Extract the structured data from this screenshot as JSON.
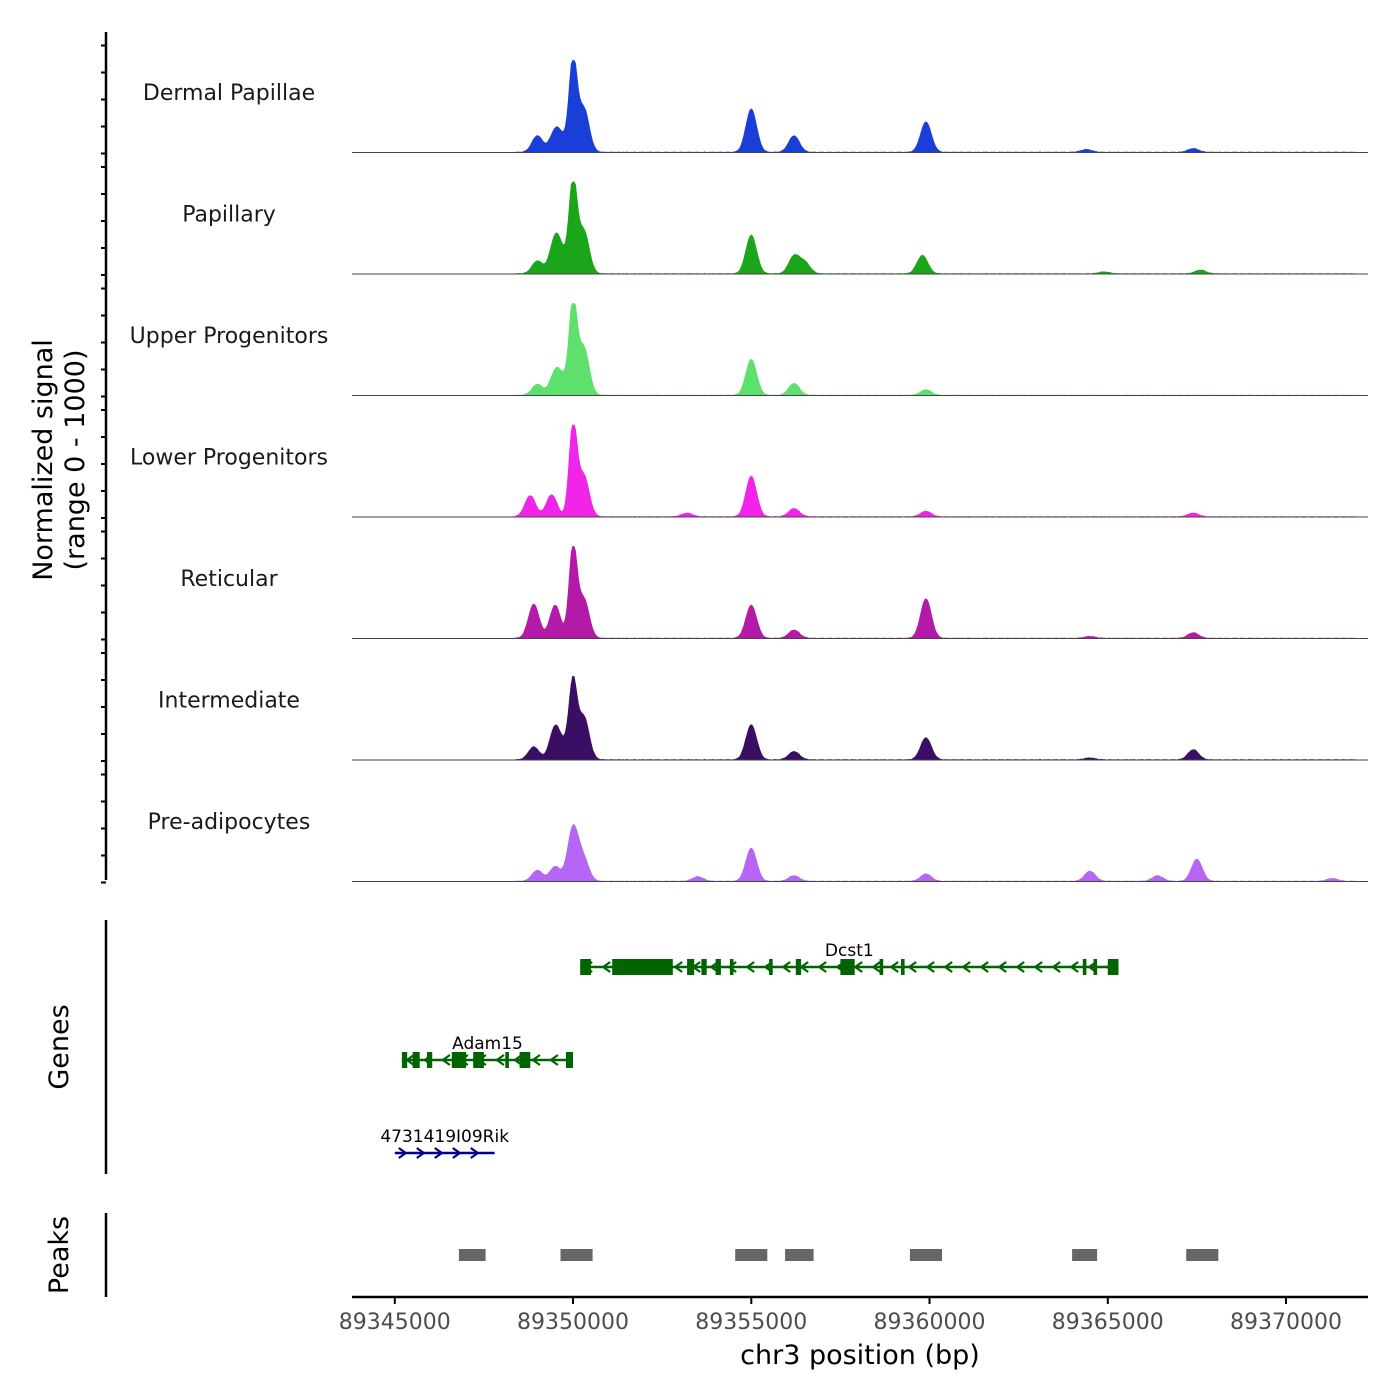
{
  "chart_data": {
    "type": "area",
    "title": "",
    "ylabel_line1": "Normalized signal",
    "ylabel_line2": "(range 0 - 1000)",
    "xlabel": "chr3 position (bp)",
    "xlim": [
      89343800,
      89372300
    ],
    "xticks": [
      89345000,
      89350000,
      89355000,
      89360000,
      89365000,
      89370000
    ],
    "xtick_labels": [
      "89345000",
      "89350000",
      "89355000",
      "89360000",
      "89365000",
      "89370000"
    ],
    "ylim": [
      0,
      1000
    ],
    "tracks": [
      {
        "name": "Dermal Papillae",
        "color": "#1a3fd8",
        "peaks": [
          [
            89349000,
            180
          ],
          [
            89349500,
            220
          ],
          [
            89349700,
            110
          ],
          [
            89350000,
            1000
          ],
          [
            89350300,
            480
          ],
          [
            89355000,
            470
          ],
          [
            89356200,
            180
          ],
          [
            89359900,
            330
          ],
          [
            89364400,
            30
          ],
          [
            89367400,
            40
          ]
        ]
      },
      {
        "name": "Papillary",
        "color": "#1aa51a",
        "peaks": [
          [
            89349000,
            140
          ],
          [
            89349500,
            370
          ],
          [
            89349700,
            150
          ],
          [
            89350000,
            1000
          ],
          [
            89350300,
            470
          ],
          [
            89355000,
            420
          ],
          [
            89356200,
            190
          ],
          [
            89356500,
            120
          ],
          [
            89359800,
            200
          ],
          [
            89364900,
            20
          ],
          [
            89367600,
            40
          ]
        ]
      },
      {
        "name": "Upper Progenitors",
        "color": "#5ee06e",
        "peaks": [
          [
            89349000,
            120
          ],
          [
            89349500,
            230
          ],
          [
            89349700,
            140
          ],
          [
            89350000,
            1000
          ],
          [
            89350300,
            520
          ],
          [
            89355000,
            390
          ],
          [
            89356200,
            130
          ],
          [
            89359900,
            60
          ]
        ]
      },
      {
        "name": "Lower Progenitors",
        "color": "#f025e8",
        "peaks": [
          [
            89348800,
            230
          ],
          [
            89349400,
            240
          ],
          [
            89350000,
            1000
          ],
          [
            89350300,
            450
          ],
          [
            89353200,
            40
          ],
          [
            89355000,
            440
          ],
          [
            89356200,
            90
          ],
          [
            89359900,
            60
          ],
          [
            89367400,
            40
          ]
        ]
      },
      {
        "name": "Reticular",
        "color": "#b41aa8",
        "peaks": [
          [
            89348900,
            370
          ],
          [
            89349500,
            360
          ],
          [
            89350000,
            1000
          ],
          [
            89350300,
            430
          ],
          [
            89355000,
            360
          ],
          [
            89356200,
            90
          ],
          [
            89359900,
            430
          ],
          [
            89364500,
            20
          ],
          [
            89367400,
            60
          ]
        ]
      },
      {
        "name": "Intermediate",
        "color": "#3a0e62",
        "peaks": [
          [
            89348900,
            140
          ],
          [
            89349500,
            360
          ],
          [
            89349800,
            120
          ],
          [
            89350000,
            800
          ],
          [
            89350300,
            470
          ],
          [
            89355000,
            380
          ],
          [
            89356200,
            90
          ],
          [
            89359900,
            240
          ],
          [
            89364500,
            20
          ],
          [
            89367400,
            110
          ]
        ]
      },
      {
        "name": "Pre-adipocytes",
        "color": "#b566f5",
        "peaks": [
          [
            89349000,
            120
          ],
          [
            89349500,
            160
          ],
          [
            89350000,
            580
          ],
          [
            89350300,
            230
          ],
          [
            89353500,
            50
          ],
          [
            89355000,
            360
          ],
          [
            89356200,
            60
          ],
          [
            89359900,
            80
          ],
          [
            89364500,
            110
          ],
          [
            89366400,
            60
          ],
          [
            89367500,
            240
          ],
          [
            89371300,
            30
          ]
        ]
      }
    ],
    "genes_label": "Genes",
    "genes": [
      {
        "name": "Dcst1",
        "start": 89350200,
        "end": 89365300,
        "strand": "-",
        "color": "#006400",
        "row": 0,
        "exons": [
          [
            89350200,
            89350500
          ],
          [
            89351100,
            89352800
          ],
          [
            89353200,
            89353400
          ],
          [
            89353600,
            89353750
          ],
          [
            89354000,
            89354150
          ],
          [
            89354400,
            89354500
          ],
          [
            89355500,
            89355600
          ],
          [
            89356250,
            89356400
          ],
          [
            89357500,
            89357900
          ],
          [
            89358600,
            89358700
          ],
          [
            89359200,
            89359300
          ],
          [
            89364300,
            89364400
          ],
          [
            89364600,
            89364700
          ],
          [
            89365000,
            89365300
          ]
        ]
      },
      {
        "name": "Adam15",
        "start": 89345200,
        "end": 89350000,
        "strand": "-",
        "color": "#006400",
        "row": 1,
        "exons": [
          [
            89345200,
            89345350
          ],
          [
            89345500,
            89345700
          ],
          [
            89345900,
            89346050
          ],
          [
            89346600,
            89347000
          ],
          [
            89347200,
            89347500
          ],
          [
            89348100,
            89348200
          ],
          [
            89348500,
            89348800
          ],
          [
            89349800,
            89350000
          ]
        ]
      },
      {
        "name": "4731419I09Rik",
        "start": 89345000,
        "end": 89347800,
        "strand": "+",
        "color": "#00008b",
        "row": 2,
        "exons": []
      }
    ],
    "peaks_label": "Peaks",
    "peak_regions": [
      [
        89346800,
        89347550
      ],
      [
        89349650,
        89350550
      ],
      [
        89354550,
        89355450
      ],
      [
        89355950,
        89356750
      ],
      [
        89359450,
        89360350
      ],
      [
        89364000,
        89364700
      ],
      [
        89367200,
        89368100
      ]
    ],
    "peak_color": "#666666"
  }
}
